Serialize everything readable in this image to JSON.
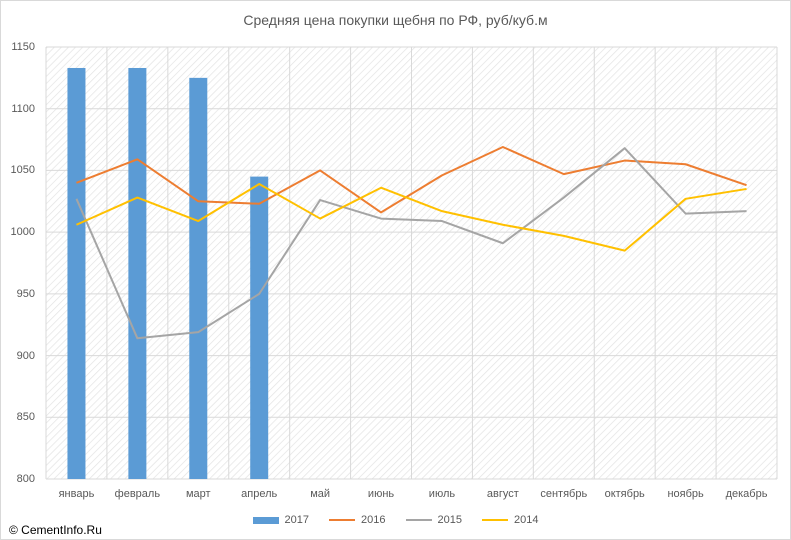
{
  "chart_data": {
    "type": "bar+line",
    "title": "Средняя цена покупки щебня по РФ, руб/куб.м",
    "categories": [
      "январь",
      "февраль",
      "март",
      "апрель",
      "май",
      "июнь",
      "июль",
      "август",
      "сентябрь",
      "октябрь",
      "ноябрь",
      "декабрь"
    ],
    "ylim": [
      800,
      1150
    ],
    "yticks": [
      800,
      850,
      900,
      950,
      1000,
      1050,
      1100,
      1150
    ],
    "grid": true,
    "legend_position": "bottom",
    "bar_series": [
      {
        "name": "2017",
        "color": "#5b9bd5",
        "values": [
          1133,
          1133,
          1125,
          1045,
          null,
          null,
          null,
          null,
          null,
          null,
          null,
          null
        ]
      }
    ],
    "line_series": [
      {
        "name": "2016",
        "color": "#ed7d31",
        "values": [
          1040,
          1059,
          1025,
          1023,
          1050,
          1016,
          1046,
          1069,
          1047,
          1058,
          1055,
          1038
        ]
      },
      {
        "name": "2015",
        "color": "#a5a5a5",
        "values": [
          1027,
          914,
          919,
          950,
          1026,
          1011,
          1009,
          991,
          1028,
          1068,
          1015,
          1017
        ]
      },
      {
        "name": "2014",
        "color": "#ffc000",
        "values": [
          1006,
          1028,
          1009,
          1039,
          1011,
          1036,
          1017,
          1006,
          997,
          985,
          1027,
          1035
        ]
      }
    ]
  },
  "footer": {
    "copyright": "© CementInfo.Ru"
  }
}
